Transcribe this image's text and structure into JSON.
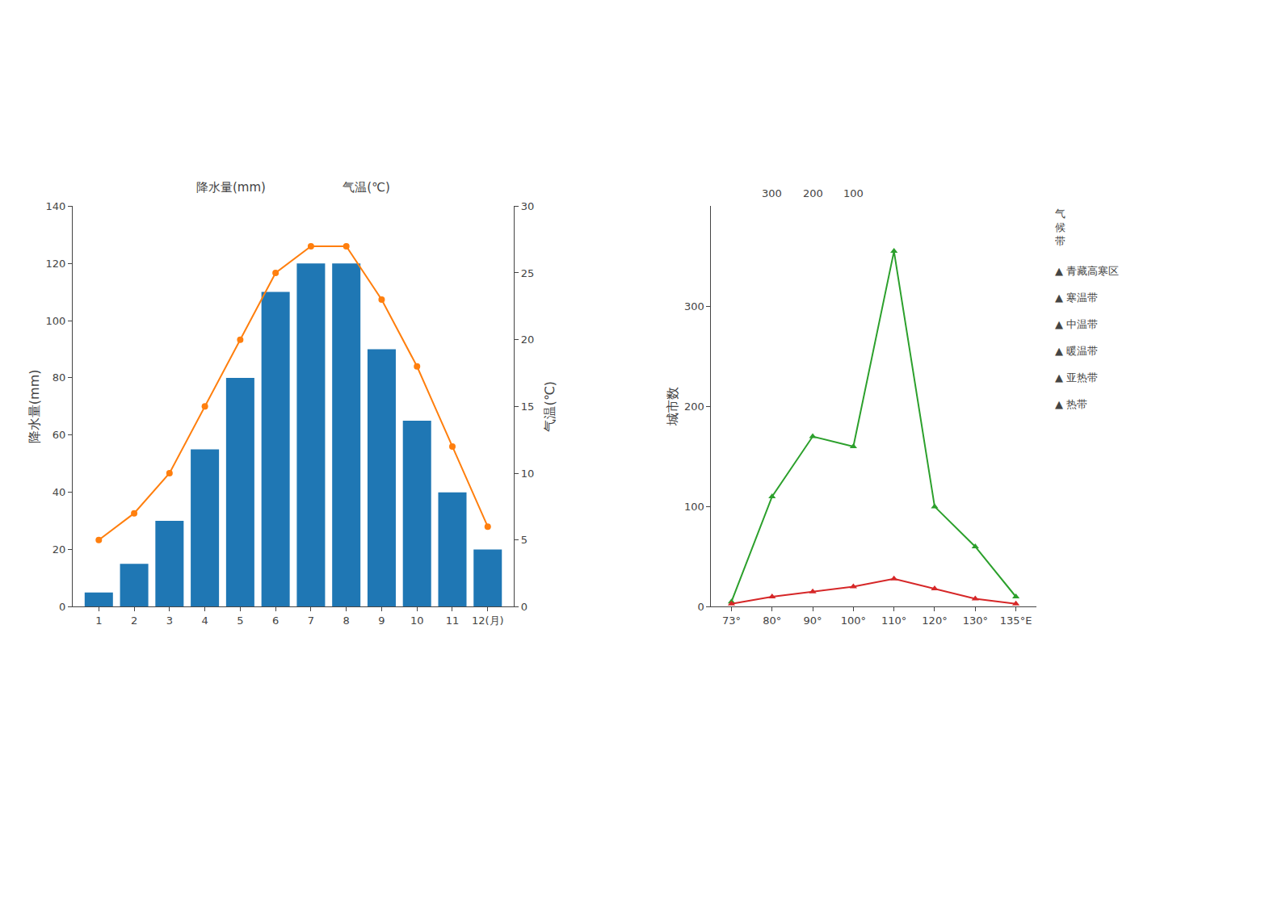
{
  "chart_data": [
    {
      "type": "bar",
      "title": "降水量(mm)                    气温(℃)",
      "categories": [
        "1",
        "2",
        "3",
        "4",
        "5",
        "6",
        "7",
        "8",
        "9",
        "10",
        "11",
        "12(月)"
      ],
      "series": [
        {
          "type": "bar",
          "values": [
            5,
            15,
            30,
            55,
            80,
            110,
            120,
            120,
            90,
            65,
            40,
            20
          ]
        },
        {
          "type": "line",
          "axis": "y2",
          "marker": "circle",
          "values": [
            5,
            7,
            10,
            15,
            20,
            25,
            27,
            27,
            23,
            18,
            12,
            6
          ]
        }
      ],
      "ylabel": "降水量(mm)",
      "y2label": "气温(℃)",
      "ylim": [
        0,
        140
      ],
      "yticks": [
        0,
        20,
        40,
        60,
        80,
        100,
        120,
        140
      ],
      "y2lim": [
        0,
        30
      ],
      "y2ticks": [
        0,
        5,
        10,
        15,
        20,
        25,
        30
      ],
      "grid": false
    },
    {
      "type": "line",
      "categories": [
        "73°",
        "80°",
        "90°",
        "100°",
        "110°",
        "120°",
        "130°",
        "135°E"
      ],
      "series": [
        {
          "marker": "triangle-up",
          "values": [
            5,
            110,
            170,
            160,
            355,
            100,
            60,
            10
          ]
        },
        {
          "marker": "triangle-up",
          "values": [
            3,
            10,
            15,
            20,
            28,
            18,
            8,
            3
          ]
        }
      ],
      "ylabel": "城市数",
      "ylim": [
        0,
        400
      ],
      "yticks": [
        0,
        100,
        200,
        300
      ],
      "grid": false,
      "annotations": [
        {
          "text": "300",
          "x": 1
        },
        {
          "text": "200",
          "x": 2
        },
        {
          "text": "100",
          "x": 3
        },
        {
          "text": "气\n候\n带"
        },
        {
          "text": "▲ 青藏高寒区"
        },
        {
          "text": "▲ 寒温带"
        },
        {
          "text": "▲ 中温带"
        },
        {
          "text": "▲ 暖温带"
        },
        {
          "text": "▲ 亚热带"
        },
        {
          "text": "▲ 热带"
        }
      ]
    }
  ]
}
